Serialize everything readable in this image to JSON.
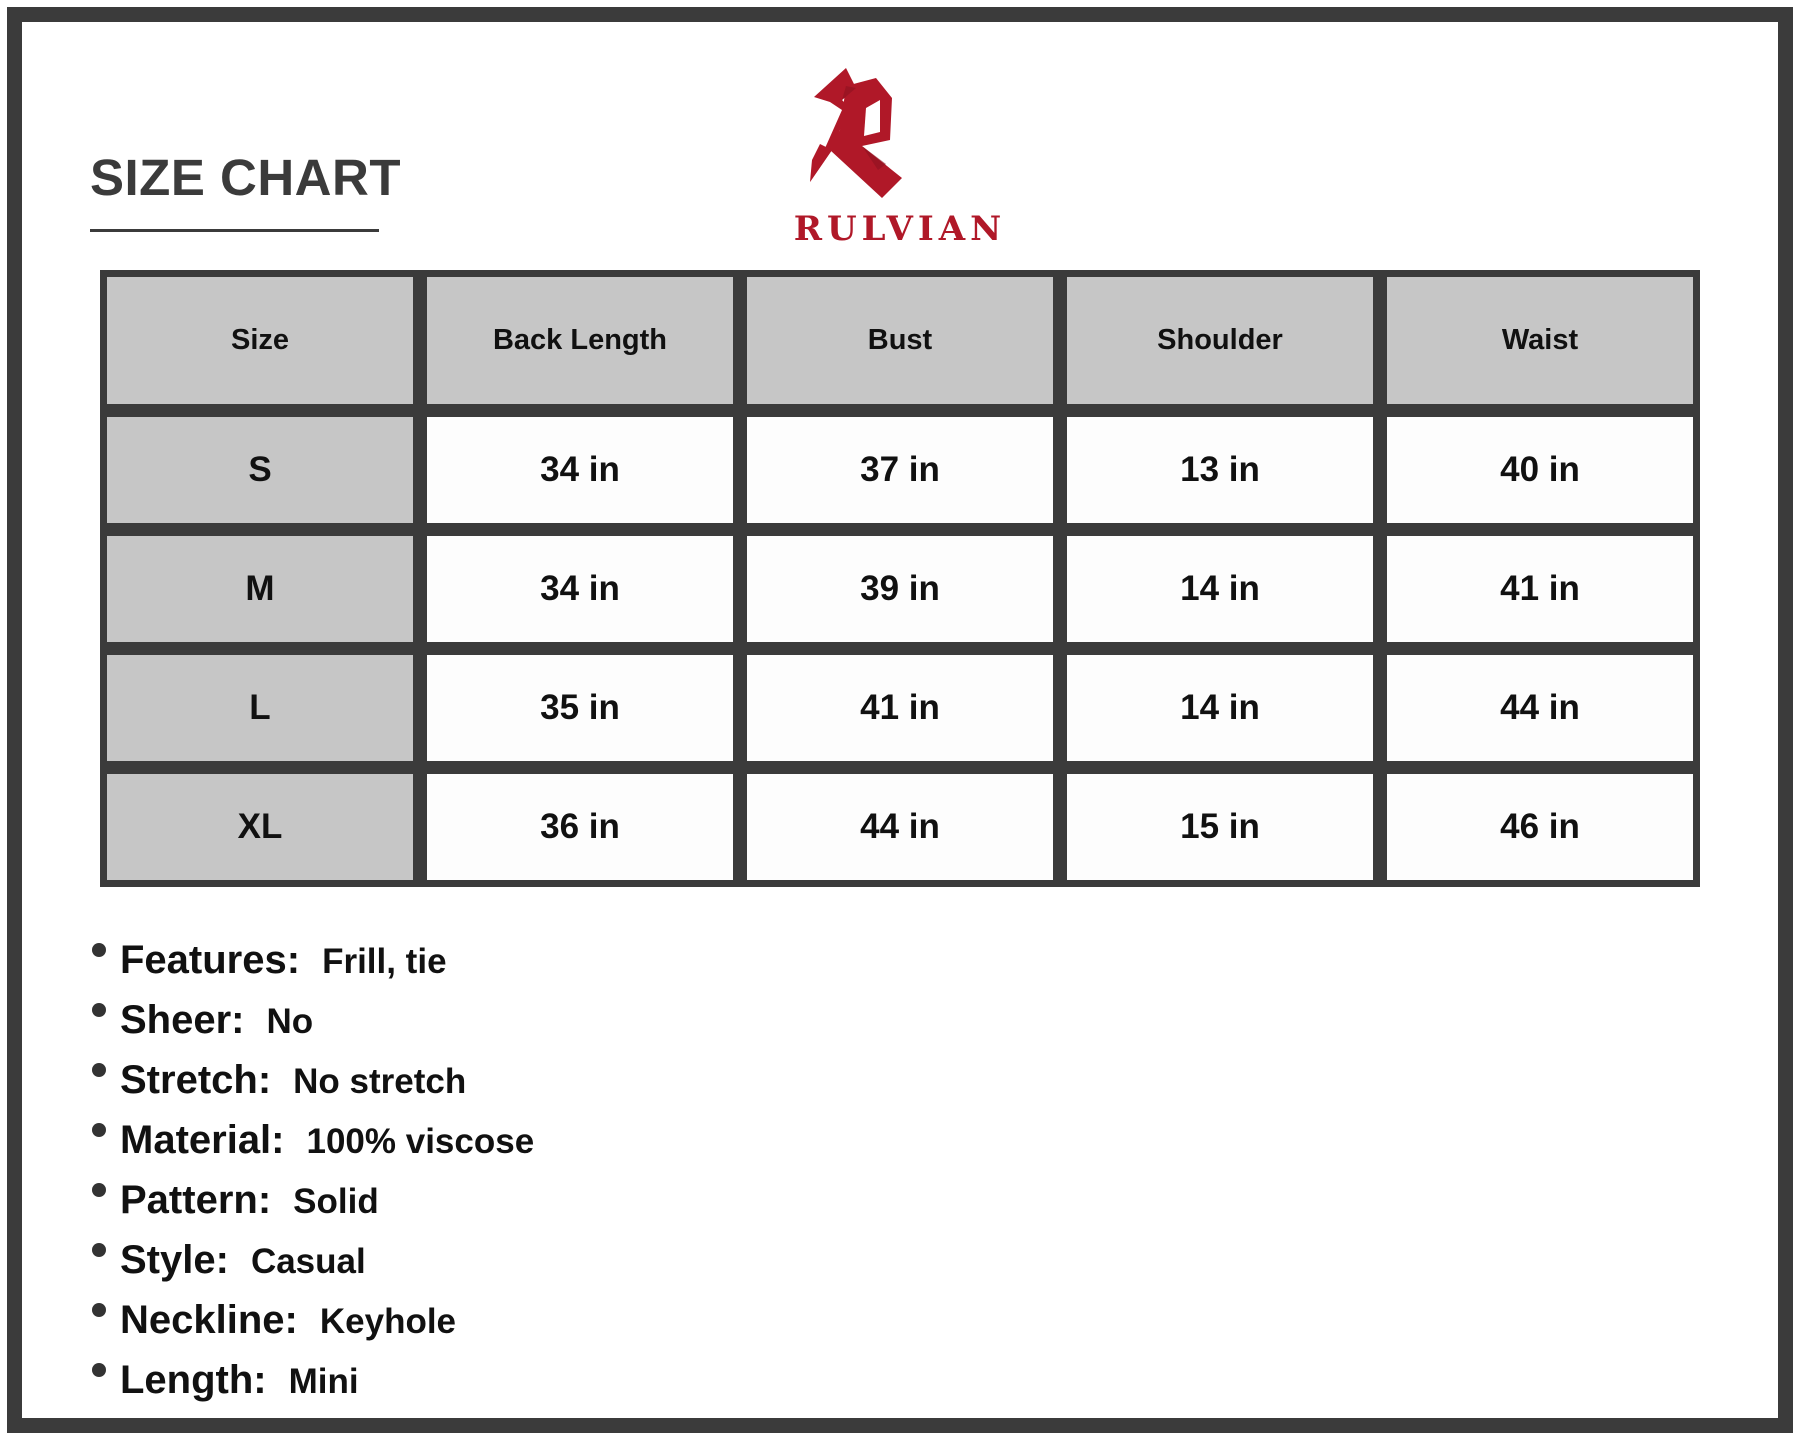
{
  "title": "SIZE CHART",
  "brand": {
    "name": "RULVIAN",
    "color": "#b01828"
  },
  "table": {
    "headers": [
      "Size",
      "Back Length",
      "Bust",
      "Shoulder",
      "Waist"
    ],
    "rows": [
      [
        "S",
        "34 in",
        "37 in",
        "13 in",
        "40 in"
      ],
      [
        "M",
        "34 in",
        "39 in",
        "14 in",
        "41 in"
      ],
      [
        "L",
        "35 in",
        "41 in",
        "14 in",
        "44 in"
      ],
      [
        "XL",
        "36 in",
        "44 in",
        "15 in",
        "46 in"
      ]
    ]
  },
  "specs": [
    {
      "label": "Features:",
      "value": "Frill, tie"
    },
    {
      "label": "Sheer:",
      "value": "No"
    },
    {
      "label": "Stretch:",
      "value": "No stretch"
    },
    {
      "label": "Material:",
      "value": "100% viscose"
    },
    {
      "label": "Pattern:",
      "value": "Solid"
    },
    {
      "label": "Style:",
      "value": "Casual"
    },
    {
      "label": "Neckline:",
      "value": "Keyhole"
    },
    {
      "label": "Length:",
      "value": "Mini"
    }
  ]
}
